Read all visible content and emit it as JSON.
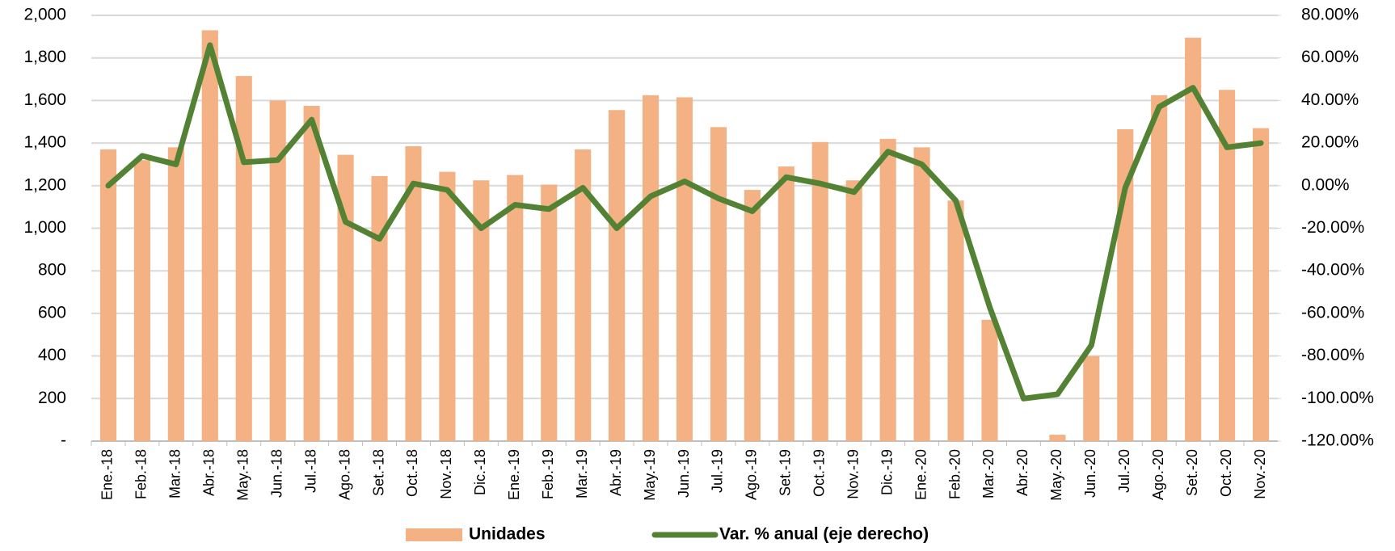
{
  "chart_data": {
    "type": "bar_line",
    "categories": [
      "Ene.-18",
      "Feb.-18",
      "Mar.-18",
      "Abr.-18",
      "May.-18",
      "Jun.-18",
      "Jul.-18",
      "Ago.-18",
      "Set.-18",
      "Oct.-18",
      "Nov.-18",
      "Dic.-18",
      "Ene.-19",
      "Feb.-19",
      "Mar.-19",
      "Abr.-19",
      "May.-19",
      "Jun.-19",
      "Jul.-19",
      "Ago.-19",
      "Set.-19",
      "Oct.-19",
      "Nov.-19",
      "Dic.-19",
      "Ene.-20",
      "Feb.-20",
      "Mar.-20",
      "Abr.-20",
      "May.-20",
      "Jun.-20",
      "Jul.-20",
      "Ago.-20",
      "Set.-20",
      "Oct.-20",
      "Nov.-20"
    ],
    "series": [
      {
        "name": "Unidades",
        "color": "#f4b183",
        "type": "bar",
        "axis": "y",
        "values": [
          1370,
          1320,
          1380,
          1930,
          1715,
          1600,
          1575,
          1345,
          1245,
          1385,
          1265,
          1225,
          1250,
          1205,
          1370,
          1555,
          1625,
          1615,
          1475,
          1180,
          1290,
          1405,
          1225,
          1420,
          1380,
          1130,
          570,
          0,
          30,
          400,
          1465,
          1625,
          1895,
          1650,
          1470
        ]
      },
      {
        "name": "Var. % anual (eje derecho)",
        "color": "#548235",
        "type": "line",
        "axis": "y2",
        "values": [
          0,
          14,
          10,
          66,
          11,
          12,
          31,
          -17,
          -25,
          1,
          -2,
          -20,
          -9,
          -11,
          -1,
          -20,
          -5,
          2,
          -6,
          -12,
          4,
          1,
          -3,
          16,
          10,
          -7,
          -57,
          -100,
          -98,
          -75,
          -1,
          37,
          46,
          18,
          20
        ]
      }
    ],
    "ylim": [
      0,
      2000
    ],
    "yticks": [
      {
        "value": 0,
        "label": "-"
      },
      {
        "value": 200,
        "label": "200"
      },
      {
        "value": 400,
        "label": "400"
      },
      {
        "value": 600,
        "label": "600"
      },
      {
        "value": 800,
        "label": "800"
      },
      {
        "value": 1000,
        "label": "1,000"
      },
      {
        "value": 1200,
        "label": "1,200"
      },
      {
        "value": 1400,
        "label": "1,400"
      },
      {
        "value": 1600,
        "label": "1,600"
      },
      {
        "value": 1800,
        "label": "1,800"
      },
      {
        "value": 2000,
        "label": "2,000"
      }
    ],
    "y2lim": [
      -120,
      80
    ],
    "y2ticks": [
      {
        "value": -120,
        "label": "-120.00%"
      },
      {
        "value": -100,
        "label": "-100.00%"
      },
      {
        "value": -80,
        "label": "-80.00%"
      },
      {
        "value": -60,
        "label": "-60.00%"
      },
      {
        "value": -40,
        "label": "-40.00%"
      },
      {
        "value": -20,
        "label": "-20.00%"
      },
      {
        "value": 0,
        "label": "0.00%"
      },
      {
        "value": 20,
        "label": "20.00%"
      },
      {
        "value": 40,
        "label": "40.00%"
      },
      {
        "value": 60,
        "label": "60.00%"
      },
      {
        "value": 80,
        "label": "80.00%"
      }
    ],
    "grid": true
  }
}
